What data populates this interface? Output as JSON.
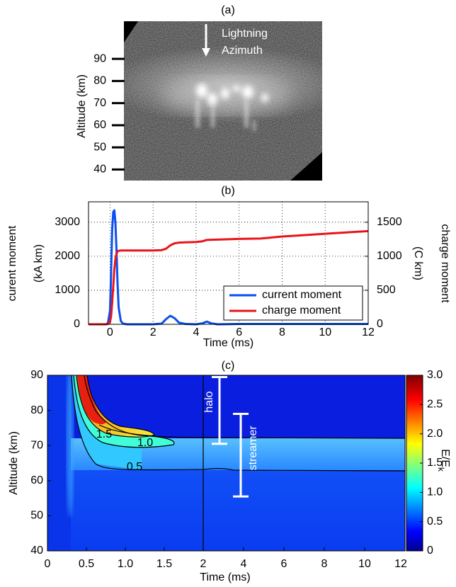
{
  "chart_data": [
    {
      "type": "image",
      "title": "(a)",
      "ylabel": "Altitude (km)",
      "ylim": [
        35,
        107
      ],
      "yticks": [
        40,
        50,
        60,
        70,
        80,
        90
      ],
      "annotation": [
        "Lightning",
        "Azimuth"
      ]
    },
    {
      "type": "line",
      "title": "(b)",
      "xlabel": "Time (ms)",
      "ylabel": [
        "curent moment",
        "(kA km)"
      ],
      "y2label": [
        "charge moment",
        "(C km)"
      ],
      "xlim": [
        -1,
        12
      ],
      "xticks": [
        0,
        2,
        4,
        6,
        8,
        10,
        12
      ],
      "ylim": [
        0,
        3600
      ],
      "yticks": [
        0,
        1000,
        2000,
        3000
      ],
      "y2lim": [
        0,
        1800
      ],
      "y2ticks": [
        0,
        500,
        1000,
        1500
      ],
      "grid": true,
      "legend": "lower right",
      "x": [
        -1,
        -0.5,
        -0.2,
        -0.1,
        0,
        0.05,
        0.1,
        0.15,
        0.2,
        0.25,
        0.3,
        0.35,
        0.4,
        0.5,
        0.6,
        0.8,
        1,
        1.5,
        2,
        2.4,
        2.6,
        2.8,
        3.0,
        3.2,
        3.5,
        4,
        4.3,
        4.5,
        4.7,
        5,
        6,
        7,
        8,
        9,
        10,
        11,
        12
      ],
      "series": [
        {
          "name": "current moment",
          "color": "#0a4ff0",
          "values": [
            0,
            0,
            0,
            30,
            400,
            1500,
            2800,
            3300,
            3350,
            3000,
            2200,
            1200,
            500,
            100,
            20,
            0,
            0,
            0,
            0,
            20,
            150,
            250,
            180,
            50,
            10,
            0,
            30,
            80,
            30,
            0,
            10,
            10,
            10,
            10,
            10,
            10,
            10
          ]
        },
        {
          "name": "charge moment",
          "color": "#e8141a",
          "axis": "y2",
          "values": [
            0,
            0,
            0,
            5,
            30,
            120,
            320,
            560,
            800,
            960,
            1040,
            1070,
            1080,
            1085,
            1085,
            1085,
            1085,
            1085,
            1085,
            1090,
            1110,
            1160,
            1190,
            1200,
            1205,
            1210,
            1220,
            1240,
            1242,
            1245,
            1255,
            1260,
            1290,
            1310,
            1330,
            1350,
            1370
          ]
        }
      ]
    },
    {
      "type": "heatmap",
      "title": "(c)",
      "xlabel": "Time (ms)",
      "ylabel": "Altitude (km)",
      "colorbar_label": "E/E",
      "colorbar_label_sub": "k",
      "ylim": [
        40,
        90
      ],
      "yticks": [
        40,
        50,
        60,
        70,
        80,
        90
      ],
      "xlim_left": [
        0,
        2
      ],
      "xticks_left": [
        0,
        0.5,
        {
          "value": 1,
          "label": "1.0"
        },
        1.5
      ],
      "xlim_right": [
        2,
        12
      ],
      "xticks_right": [
        2,
        4,
        6,
        8,
        10,
        12
      ],
      "clim": [
        0,
        3
      ],
      "cticks": [
        0,
        0.5,
        {
          "value": 1,
          "label": "1.0"
        },
        1.5,
        {
          "value": 2,
          "label": "2.0"
        },
        2.5,
        {
          "value": 3,
          "label": "3.0"
        }
      ],
      "contour_levels": [
        0.5,
        {
          "value": 1,
          "label": "1.0"
        },
        1.5
      ],
      "annotations": [
        {
          "label": "halo",
          "range": [
            70.5,
            89.5
          ]
        },
        {
          "label": "streamer",
          "range": [
            55.5,
            79
          ]
        }
      ]
    }
  ]
}
